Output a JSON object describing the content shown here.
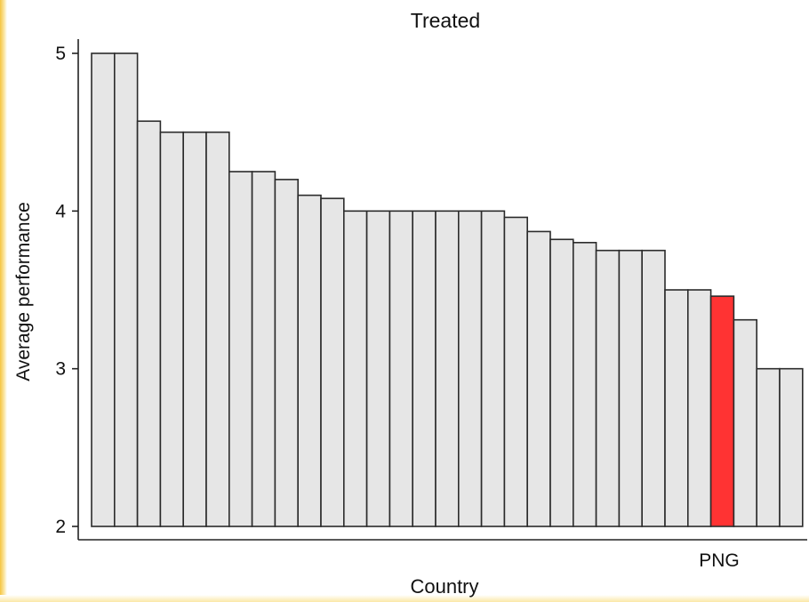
{
  "chart_data": {
    "type": "bar",
    "title": "Treated",
    "xlabel": "Country",
    "ylabel": "Average performance",
    "ylim": [
      2,
      5.1
    ],
    "yticks": [
      2,
      3,
      4,
      5
    ],
    "grid": false,
    "legend": "none",
    "highlight_label": "PNG",
    "highlight_index": 27,
    "bar_color": "#e6e6e6",
    "highlight_color": "#ff3333",
    "edge_color": "#2b2b2b",
    "values": [
      5.0,
      5.0,
      4.57,
      4.5,
      4.5,
      4.5,
      4.25,
      4.25,
      4.2,
      4.1,
      4.08,
      4.0,
      4.0,
      4.0,
      4.0,
      4.0,
      4.0,
      4.0,
      3.96,
      3.87,
      3.82,
      3.8,
      3.75,
      3.75,
      3.75,
      3.5,
      3.5,
      3.46,
      3.31,
      3.0,
      3.0
    ]
  }
}
